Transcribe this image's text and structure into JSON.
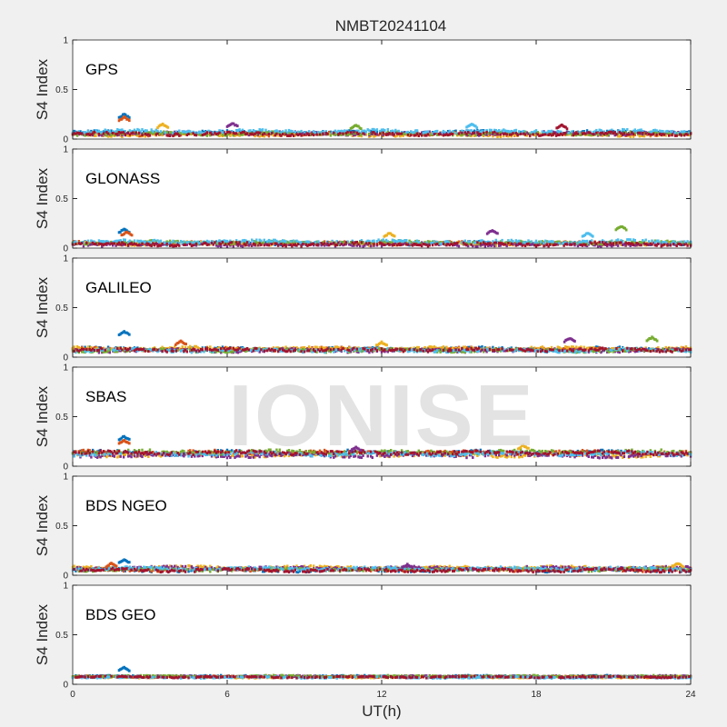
{
  "chart_data": {
    "type": "scatter",
    "title": "NMBT20241104",
    "xlabel": "UT(h)",
    "ylabel": "S4 Index",
    "xlim": [
      0,
      24
    ],
    "xticks": [
      "0",
      "6",
      "12",
      "18",
      "24"
    ],
    "ylim": [
      0,
      1
    ],
    "yticks": [
      "0",
      "0.5",
      "1"
    ],
    "watermark": "IONISE",
    "series_colors": [
      "#0072BD",
      "#D95319",
      "#EDB120",
      "#7E2F8E",
      "#77AC30",
      "#4DBEEE",
      "#A2142F"
    ],
    "panels": [
      {
        "name": "GPS",
        "baseline": 0.06,
        "spread": 0.025,
        "features": [
          {
            "x": 2.0,
            "y": 0.25
          },
          {
            "x": 2.0,
            "y": 0.22
          },
          {
            "x": 3.5,
            "y": 0.15
          },
          {
            "x": 6.2,
            "y": 0.16
          },
          {
            "x": 11.0,
            "y": 0.14
          },
          {
            "x": 15.5,
            "y": 0.15
          },
          {
            "x": 19.0,
            "y": 0.14
          }
        ]
      },
      {
        "name": "GLONASS",
        "baseline": 0.05,
        "spread": 0.025,
        "features": [
          {
            "x": 2.0,
            "y": 0.19
          },
          {
            "x": 2.1,
            "y": 0.16
          },
          {
            "x": 12.3,
            "y": 0.15
          },
          {
            "x": 16.3,
            "y": 0.18
          },
          {
            "x": 21.3,
            "y": 0.22
          },
          {
            "x": 20.0,
            "y": 0.15
          }
        ]
      },
      {
        "name": "GALILEO",
        "baseline": 0.07,
        "spread": 0.025,
        "features": [
          {
            "x": 2.0,
            "y": 0.26
          },
          {
            "x": 4.2,
            "y": 0.16
          },
          {
            "x": 12.0,
            "y": 0.15
          },
          {
            "x": 19.3,
            "y": 0.19
          },
          {
            "x": 22.5,
            "y": 0.2
          }
        ]
      },
      {
        "name": "SBAS",
        "baseline": 0.13,
        "spread": 0.03,
        "features": [
          {
            "x": 2.0,
            "y": 0.3
          },
          {
            "x": 2.0,
            "y": 0.26
          },
          {
            "x": 17.5,
            "y": 0.21
          },
          {
            "x": 11.0,
            "y": 0.19
          }
        ]
      },
      {
        "name": "BDS NGEO",
        "baseline": 0.07,
        "spread": 0.025,
        "features": [
          {
            "x": 2.0,
            "y": 0.16
          },
          {
            "x": 1.5,
            "y": 0.12
          },
          {
            "x": 23.5,
            "y": 0.12
          },
          {
            "x": 13.0,
            "y": 0.11
          }
        ]
      },
      {
        "name": "BDS GEO",
        "baseline": 0.075,
        "spread": 0.012,
        "features": [
          {
            "x": 2.0,
            "y": 0.17
          }
        ]
      }
    ]
  }
}
